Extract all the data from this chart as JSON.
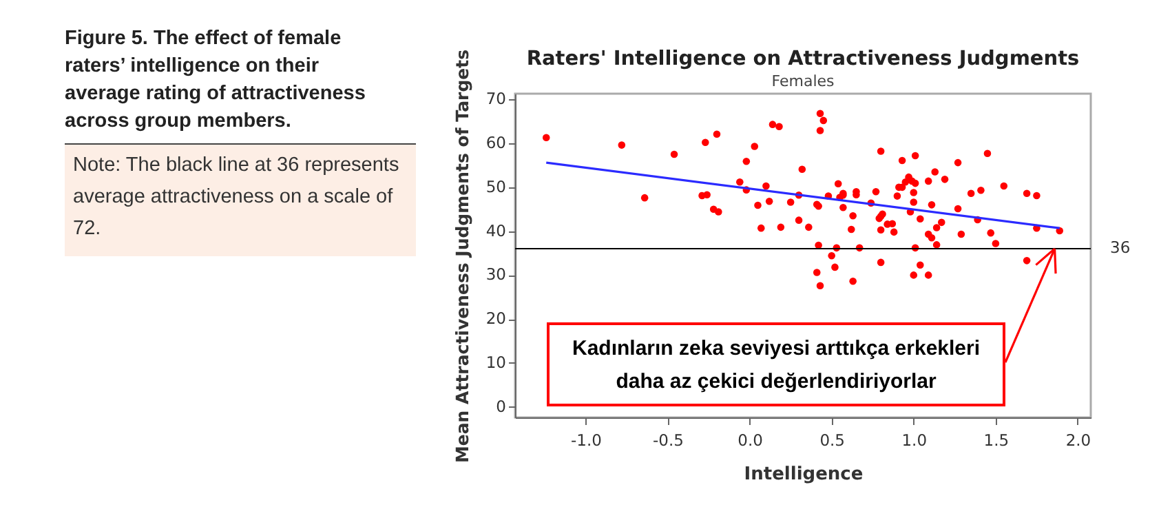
{
  "chart_data": {
    "type": "scatter",
    "title": "Raters' Intelligence on Attractiveness Judgments",
    "subtitle": "Females",
    "xlabel": "Intelligence",
    "ylabel": "Mean Attractiveness Judgments of Targets",
    "xlim": [
      -1.43,
      2.08
    ],
    "ylim": [
      -2.4,
      71.3
    ],
    "xticks": [
      {
        "value": -1,
        "label": "-1.0"
      },
      {
        "value": -0.5,
        "label": "-0.5"
      },
      {
        "value": 0,
        "label": "0.0"
      },
      {
        "value": 0.5,
        "label": "0.5"
      },
      {
        "value": 1,
        "label": "1.0"
      },
      {
        "value": 1.5,
        "label": "1.5"
      },
      {
        "value": 2,
        "label": "2.0"
      }
    ],
    "yticks": [
      0,
      10,
      20,
      30,
      40,
      50,
      60,
      70
    ],
    "grid": false,
    "marker": "circle",
    "series": [
      {
        "color": "#ff0000",
        "x": [
          -1.24,
          -0.78,
          -0.64,
          -0.46,
          -0.29,
          -0.26,
          -0.27,
          -0.22,
          -0.19,
          -0.2,
          -0.06,
          -0.02,
          -0.02,
          0.03,
          0.05,
          0.07,
          0.1,
          0.12,
          0.14,
          0.18,
          0.19,
          0.25,
          0.3,
          0.3,
          0.32,
          0.36,
          0.41,
          0.42,
          0.41,
          0.42,
          0.43,
          0.43,
          0.45,
          0.43,
          0.48,
          0.5,
          0.52,
          0.53,
          0.54,
          0.55,
          0.57,
          0.57,
          0.57,
          0.62,
          0.63,
          0.63,
          0.65,
          0.65,
          0.67,
          0.74,
          0.77,
          0.79,
          0.8,
          0.8,
          0.81,
          0.8,
          0.8,
          0.84,
          0.87,
          0.88,
          0.9,
          0.91,
          0.93,
          0.93,
          0.95,
          0.97,
          0.98,
          0.99,
          1.0,
          1.01,
          1.0,
          1.01,
          1.01,
          1.0,
          1.04,
          1.04,
          1.09,
          1.09,
          1.09,
          1.11,
          1.11,
          1.13,
          1.14,
          1.14,
          1.17,
          1.19,
          1.27,
          1.27,
          1.29,
          1.35,
          1.39,
          1.41,
          1.45,
          1.47,
          1.5,
          1.55,
          1.69,
          1.69,
          1.75,
          1.75,
          1.89
        ],
        "values": [
          61.3,
          59.6,
          47.6,
          57.5,
          48.1,
          48.3,
          60.2,
          45.0,
          44.4,
          62.1,
          51.2,
          49.4,
          55.9,
          59.3,
          45.9,
          40.7,
          50.3,
          46.8,
          64.3,
          63.8,
          40.9,
          46.6,
          42.5,
          48.2,
          54.1,
          40.9,
          46.1,
          45.7,
          30.6,
          36.8,
          27.6,
          66.8,
          65.2,
          62.9,
          48.0,
          34.4,
          31.8,
          36.2,
          50.8,
          47.7,
          48.2,
          48.6,
          45.4,
          40.4,
          43.5,
          28.6,
          49.0,
          48.3,
          36.2,
          46.4,
          49.0,
          42.9,
          40.3,
          43.4,
          43.9,
          58.2,
          32.9,
          41.6,
          41.7,
          39.8,
          48.0,
          50.0,
          50.0,
          56.1,
          51.2,
          52.3,
          44.4,
          51.4,
          48.8,
          57.2,
          46.6,
          50.9,
          36.2,
          30.0,
          32.3,
          42.8,
          51.4,
          39.3,
          30.0,
          46.0,
          38.5,
          53.5,
          40.8,
          36.9,
          42.0,
          51.8,
          55.6,
          45.1,
          39.3,
          48.6,
          42.6,
          49.3,
          57.7,
          39.6,
          37.2,
          50.3,
          48.6,
          33.3,
          48.1,
          40.7,
          40.1
        ]
      },
      {
        "type": "line",
        "marker": "none",
        "color": "#2b2bff",
        "x": [
          -1.24,
          1.89
        ],
        "values": [
          55.6,
          40.7
        ]
      }
    ],
    "ref_lines": [
      {
        "axis": "y",
        "value": 36,
        "label": "36",
        "color": "#000000"
      }
    ],
    "annotations": [
      "Figure 5. The effect of female raters’ intelligence on their average rating of attractiveness across group members.",
      "Note: The black line at 36 represents average attractiveness on a scale of 72.",
      {
        "text": "Kadınların zeka seviyesi arttıkça erkekleri daha az çekici değerlendiriyorlar",
        "x": 1.86,
        "y": 36
      }
    ]
  }
}
